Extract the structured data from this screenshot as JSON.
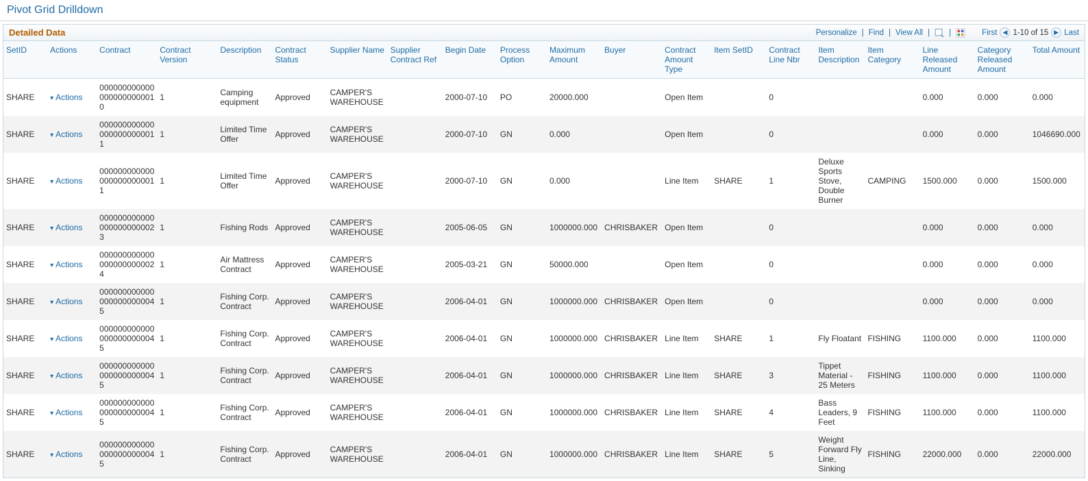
{
  "page": {
    "title": "Pivot Grid Drilldown"
  },
  "grid": {
    "title": "Detailed Data",
    "tools": {
      "personalize": "Personalize",
      "find": "Find",
      "view_all": "View All"
    },
    "nav": {
      "first": "First",
      "range": "1-10 of 15",
      "last": "Last"
    },
    "columns": [
      "SetID",
      "Actions",
      "Contract",
      "Contract Version",
      "Description",
      "Contract Status",
      "Supplier Name",
      "Supplier Contract Ref",
      "Begin Date",
      "Process Option",
      "Maximum Amount",
      "Buyer",
      "Contract Amount Type",
      "Item SetID",
      "Contract Line Nbr",
      "Item Description",
      "Item Category",
      "Line Released Amount",
      "Category Released Amount",
      "Total Amount"
    ],
    "actions_label": "Actions",
    "rows": [
      {
        "setid": "SHARE",
        "contract": "0000000000000000000000010",
        "cver": "1",
        "desc": "Camping equipment",
        "cstatus": "Approved",
        "supplier": "CAMPER'S WAREHOUSE",
        "suppref": "",
        "begin": "2000-07-10",
        "proc": "PO",
        "maxamt": "20000.000",
        "buyer": "",
        "camttype": "Open Item",
        "isetid": "",
        "clnbr": "0",
        "idesc": "",
        "icat": "",
        "lineamt": "0.000",
        "catamt": "0.000",
        "totamt": "0.000"
      },
      {
        "setid": "SHARE",
        "contract": "0000000000000000000000011",
        "cver": "1",
        "desc": "Limited Time Offer",
        "cstatus": "Approved",
        "supplier": "CAMPER'S WAREHOUSE",
        "suppref": "",
        "begin": "2000-07-10",
        "proc": "GN",
        "maxamt": "0.000",
        "buyer": "",
        "camttype": "Open Item",
        "isetid": "",
        "clnbr": "0",
        "idesc": "",
        "icat": "",
        "lineamt": "0.000",
        "catamt": "0.000",
        "totamt": "1046690.000"
      },
      {
        "setid": "SHARE",
        "contract": "0000000000000000000000011",
        "cver": "1",
        "desc": "Limited Time Offer",
        "cstatus": "Approved",
        "supplier": "CAMPER'S WAREHOUSE",
        "suppref": "",
        "begin": "2000-07-10",
        "proc": "GN",
        "maxamt": "0.000",
        "buyer": "",
        "camttype": "Line Item",
        "isetid": "SHARE",
        "clnbr": "1",
        "idesc": "Deluxe Sports Stove, Double Burner",
        "icat": "CAMPING",
        "lineamt": "1500.000",
        "catamt": "0.000",
        "totamt": "1500.000"
      },
      {
        "setid": "SHARE",
        "contract": "0000000000000000000000023",
        "cver": "1",
        "desc": "Fishing Rods",
        "cstatus": "Approved",
        "supplier": "CAMPER'S WAREHOUSE",
        "suppref": "",
        "begin": "2005-06-05",
        "proc": "GN",
        "maxamt": "1000000.000",
        "buyer": "CHRISBAKER",
        "camttype": "Open Item",
        "isetid": "",
        "clnbr": "0",
        "idesc": "",
        "icat": "",
        "lineamt": "0.000",
        "catamt": "0.000",
        "totamt": "0.000"
      },
      {
        "setid": "SHARE",
        "contract": "0000000000000000000000024",
        "cver": "1",
        "desc": "Air Mattress Contract",
        "cstatus": "Approved",
        "supplier": "CAMPER'S WAREHOUSE",
        "suppref": "",
        "begin": "2005-03-21",
        "proc": "GN",
        "maxamt": "50000.000",
        "buyer": "",
        "camttype": "Open Item",
        "isetid": "",
        "clnbr": "0",
        "idesc": "",
        "icat": "",
        "lineamt": "0.000",
        "catamt": "0.000",
        "totamt": "0.000"
      },
      {
        "setid": "SHARE",
        "contract": "0000000000000000000000045",
        "cver": "1",
        "desc": "Fishing Corp. Contract",
        "cstatus": "Approved",
        "supplier": "CAMPER'S WAREHOUSE",
        "suppref": "",
        "begin": "2006-04-01",
        "proc": "GN",
        "maxamt": "1000000.000",
        "buyer": "CHRISBAKER",
        "camttype": "Open Item",
        "isetid": "",
        "clnbr": "0",
        "idesc": "",
        "icat": "",
        "lineamt": "0.000",
        "catamt": "0.000",
        "totamt": "0.000"
      },
      {
        "setid": "SHARE",
        "contract": "0000000000000000000000045",
        "cver": "1",
        "desc": "Fishing Corp. Contract",
        "cstatus": "Approved",
        "supplier": "CAMPER'S WAREHOUSE",
        "suppref": "",
        "begin": "2006-04-01",
        "proc": "GN",
        "maxamt": "1000000.000",
        "buyer": "CHRISBAKER",
        "camttype": "Line Item",
        "isetid": "SHARE",
        "clnbr": "1",
        "idesc": "Fly Floatant",
        "icat": "FISHING",
        "lineamt": "1100.000",
        "catamt": "0.000",
        "totamt": "1100.000"
      },
      {
        "setid": "SHARE",
        "contract": "0000000000000000000000045",
        "cver": "1",
        "desc": "Fishing Corp. Contract",
        "cstatus": "Approved",
        "supplier": "CAMPER'S WAREHOUSE",
        "suppref": "",
        "begin": "2006-04-01",
        "proc": "GN",
        "maxamt": "1000000.000",
        "buyer": "CHRISBAKER",
        "camttype": "Line Item",
        "isetid": "SHARE",
        "clnbr": "3",
        "idesc": "Tippet Material - 25 Meters",
        "icat": "FISHING",
        "lineamt": "1100.000",
        "catamt": "0.000",
        "totamt": "1100.000"
      },
      {
        "setid": "SHARE",
        "contract": "0000000000000000000000045",
        "cver": "1",
        "desc": "Fishing Corp. Contract",
        "cstatus": "Approved",
        "supplier": "CAMPER'S WAREHOUSE",
        "suppref": "",
        "begin": "2006-04-01",
        "proc": "GN",
        "maxamt": "1000000.000",
        "buyer": "CHRISBAKER",
        "camttype": "Line Item",
        "isetid": "SHARE",
        "clnbr": "4",
        "idesc": "Bass Leaders, 9 Feet",
        "icat": "FISHING",
        "lineamt": "1100.000",
        "catamt": "0.000",
        "totamt": "1100.000"
      },
      {
        "setid": "SHARE",
        "contract": "0000000000000000000000045",
        "cver": "1",
        "desc": "Fishing Corp. Contract",
        "cstatus": "Approved",
        "supplier": "CAMPER'S WAREHOUSE",
        "suppref": "",
        "begin": "2006-04-01",
        "proc": "GN",
        "maxamt": "1000000.000",
        "buyer": "CHRISBAKER",
        "camttype": "Line Item",
        "isetid": "SHARE",
        "clnbr": "5",
        "idesc": "Weight Forward Fly Line, Sinking",
        "icat": "FISHING",
        "lineamt": "22000.000",
        "catamt": "0.000",
        "totamt": "22000.000"
      }
    ]
  }
}
